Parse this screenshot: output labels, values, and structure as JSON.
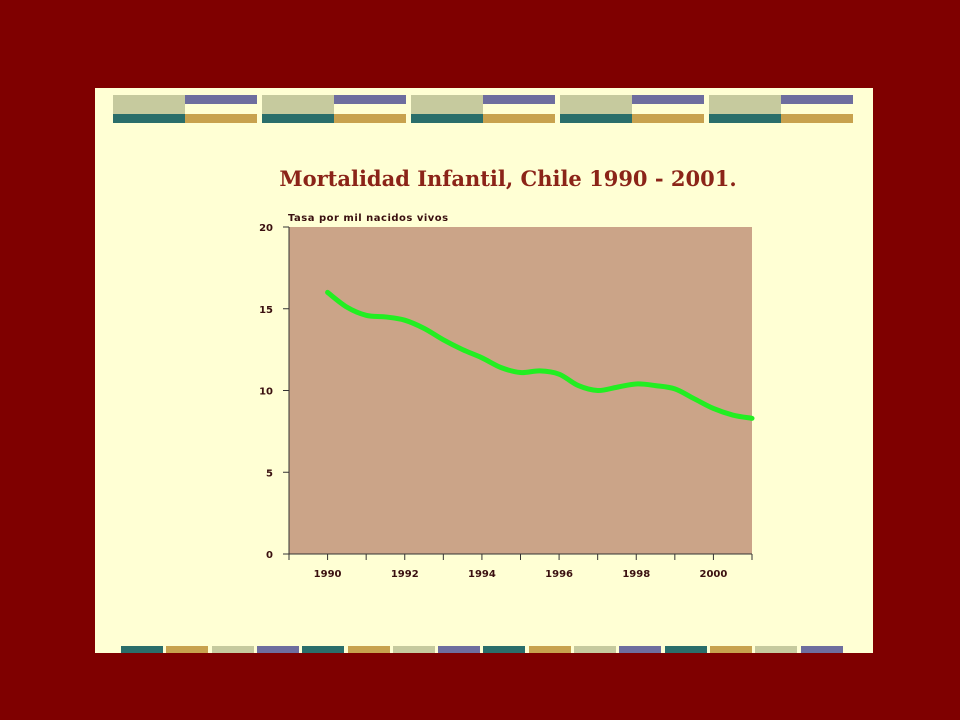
{
  "slide": {
    "title": "Mortalidad Infantil, Chile 1990 - 2001.",
    "deco_colors": {
      "teal": "#2a6e6a",
      "gold": "#c8a24e",
      "sage": "#c6ca9e",
      "violet": "#6e6e9e",
      "background": "#ffffd4",
      "frame": "#7f0000"
    }
  },
  "chart_data": {
    "type": "line",
    "title": "Mortalidad Infantil, Chile 1990 - 2001.",
    "ylabel": "Tasa por mil nacidos vivos",
    "xlabel": "",
    "ylim": [
      0,
      20
    ],
    "xlim": [
      1989,
      2001
    ],
    "yticks": [
      0,
      5,
      10,
      15,
      20
    ],
    "xticks": [
      1990,
      1992,
      1994,
      1996,
      1998,
      2000
    ],
    "grid": false,
    "plot_background": "#cba488",
    "series": [
      {
        "color": "#22ee22",
        "x": [
          1990,
          1990.5,
          1991,
          1991.5,
          1992,
          1992.5,
          1993,
          1993.5,
          1994,
          1994.5,
          1995,
          1995.5,
          1996,
          1996.5,
          1997,
          1997.5,
          1998,
          1998.5,
          1999,
          1999.5,
          2000,
          2000.5,
          2001
        ],
        "values": [
          16.0,
          15.1,
          14.6,
          14.5,
          14.3,
          13.8,
          13.1,
          12.5,
          12.0,
          11.4,
          11.1,
          11.2,
          11.0,
          10.3,
          10.0,
          10.2,
          10.4,
          10.3,
          10.1,
          9.5,
          8.9,
          8.5,
          8.3
        ]
      }
    ]
  }
}
